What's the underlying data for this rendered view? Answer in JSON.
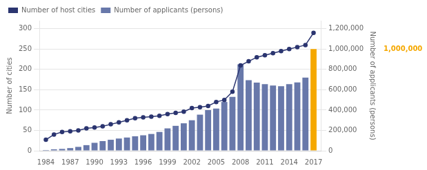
{
  "chart_data": {
    "type": "bar",
    "x": [
      1984,
      1985,
      1986,
      1987,
      1988,
      1989,
      1990,
      1991,
      1992,
      1993,
      1994,
      1995,
      1996,
      1997,
      1998,
      1999,
      2000,
      2001,
      2002,
      2003,
      2004,
      2005,
      2006,
      2007,
      2008,
      2009,
      2010,
      2011,
      2012,
      2013,
      2014,
      2015,
      2016,
      2017
    ],
    "xlim": [
      1983.2,
      2017.9
    ],
    "xticks": [
      1984,
      1987,
      1990,
      1993,
      1996,
      1999,
      2002,
      2005,
      2008,
      2011,
      2014,
      2017
    ],
    "ylabel": "Number of cities",
    "ylim": [
      0,
      320
    ],
    "yticks": [
      0,
      50,
      100,
      150,
      200,
      250,
      300
    ],
    "y2label": "Number of applicants (persons)",
    "y2lim": [
      0,
      1280000
    ],
    "y2ticks": [
      0,
      {
        "value": 200000,
        "label": "200,000"
      },
      {
        "value": 400000,
        "label": "400,000"
      },
      {
        "value": 600000,
        "label": "600,000"
      },
      {
        "value": 800000,
        "label": "800,000"
      },
      {
        "value": 1000000,
        "label": "1,000,000"
      },
      {
        "value": 1200000,
        "label": "1,200,000"
      }
    ],
    "grid": true,
    "legend": "upper left",
    "series": [
      {
        "name": "Number of host cities",
        "type": "line",
        "color": "#2b3570",
        "marker": "circle",
        "values": [
          27,
          40,
          46,
          48,
          50,
          55,
          57,
          60,
          65,
          70,
          75,
          80,
          82,
          84,
          86,
          90,
          93,
          96,
          105,
          107,
          110,
          120,
          125,
          145,
          210,
          220,
          230,
          235,
          240,
          245,
          250,
          255,
          260,
          290
        ]
      },
      {
        "name": "Number of applicants (persons)",
        "type": "bar",
        "axis": "y2",
        "color": "#6878aa",
        "colors": [
          "#6878aa",
          "#6878aa",
          "#6878aa",
          "#6878aa",
          "#6878aa",
          "#6878aa",
          "#6878aa",
          "#6878aa",
          "#6878aa",
          "#6878aa",
          "#6878aa",
          "#6878aa",
          "#6878aa",
          "#6878aa",
          "#6878aa",
          "#6878aa",
          "#6878aa",
          "#6878aa",
          "#6878aa",
          "#6878aa",
          "#6878aa",
          "#6878aa",
          "#6878aa",
          "#6878aa",
          "#6878aa",
          "#6878aa",
          "#6878aa",
          "#6878aa",
          "#6878aa",
          "#6878aa",
          "#6878aa",
          "#6878aa",
          "#6878aa",
          "#f5a800"
        ],
        "values": [
          7000,
          14000,
          18000,
          26000,
          38000,
          55000,
          78000,
          95000,
          108000,
          120000,
          130000,
          142000,
          152000,
          165000,
          185000,
          220000,
          245000,
          270000,
          300000,
          355000,
          400000,
          415000,
          480000,
          530000,
          850000,
          695000,
          670000,
          655000,
          642000,
          635000,
          655000,
          672000,
          720000,
          1000000
        ]
      }
    ],
    "annotations": [
      {
        "text": "1,000,000",
        "y": 1000000,
        "axis": "y2",
        "color": "#f5a800"
      }
    ]
  }
}
